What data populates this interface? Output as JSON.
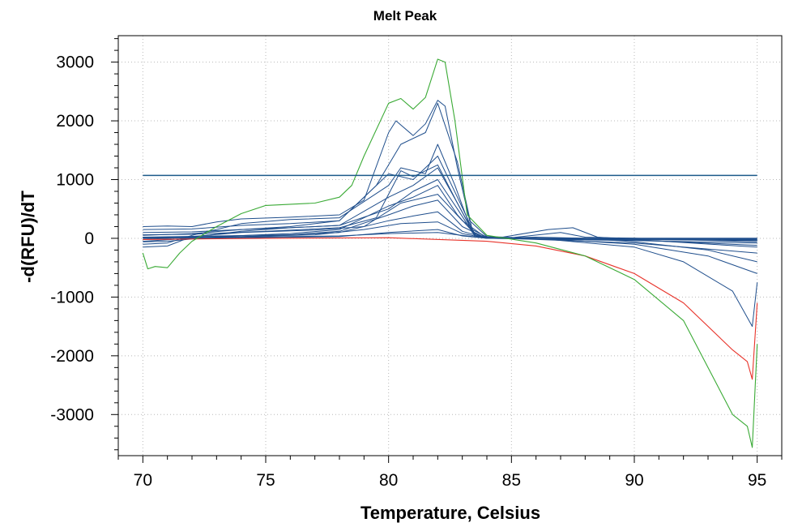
{
  "chart_data": {
    "type": "line",
    "title": "Melt Peak",
    "xlabel": "Temperature, Celsius",
    "ylabel": "-d(RFU)/dT",
    "xlim": [
      69,
      96
    ],
    "ylim": [
      -3700,
      3450
    ],
    "x_ticks": [
      70,
      75,
      80,
      85,
      90,
      95
    ],
    "y_ticks": [
      -3000,
      -2000,
      -1000,
      0,
      1000,
      2000,
      3000
    ],
    "x_minor_step": 1,
    "y_minor_step": 200,
    "grid": true,
    "threshold": 1070,
    "colors": {
      "main_series": "#1f4e8c",
      "threshold": "#1c5a8a",
      "outlier_green": "#3aaa35",
      "outlier_red": "#e8332a"
    },
    "series": [
      {
        "color": "green",
        "points": [
          [
            70,
            -250
          ],
          [
            70.2,
            -520
          ],
          [
            70.5,
            -480
          ],
          [
            71,
            -500
          ],
          [
            71.5,
            -250
          ],
          [
            72,
            -50
          ],
          [
            73,
            200
          ],
          [
            74,
            420
          ],
          [
            75,
            560
          ],
          [
            77,
            600
          ],
          [
            78,
            700
          ],
          [
            78.5,
            900
          ],
          [
            79,
            1400
          ],
          [
            80,
            2300
          ],
          [
            80.5,
            2380
          ],
          [
            81,
            2200
          ],
          [
            81.5,
            2400
          ],
          [
            82,
            3050
          ],
          [
            82.3,
            3000
          ],
          [
            82.7,
            2000
          ],
          [
            83.2,
            400
          ],
          [
            84,
            50
          ],
          [
            86,
            -80
          ],
          [
            88,
            -300
          ],
          [
            90,
            -700
          ],
          [
            92,
            -1400
          ],
          [
            94,
            -3000
          ],
          [
            94.6,
            -3200
          ],
          [
            94.8,
            -3560
          ],
          [
            95,
            -1800
          ]
        ]
      },
      {
        "color": "red",
        "points": [
          [
            70,
            -20
          ],
          [
            75,
            0
          ],
          [
            80,
            10
          ],
          [
            84,
            -50
          ],
          [
            86,
            -130
          ],
          [
            88,
            -300
          ],
          [
            90,
            -600
          ],
          [
            92,
            -1100
          ],
          [
            94,
            -1900
          ],
          [
            94.6,
            -2100
          ],
          [
            94.8,
            -2400
          ],
          [
            95,
            -1100
          ]
        ]
      },
      {
        "color": "blue",
        "points": [
          [
            70,
            200
          ],
          [
            71,
            210
          ],
          [
            72,
            200
          ],
          [
            73,
            280
          ],
          [
            74,
            330
          ],
          [
            76,
            360
          ],
          [
            78,
            400
          ],
          [
            79,
            650
          ],
          [
            80,
            1800
          ],
          [
            80.3,
            2000
          ],
          [
            81,
            1750
          ],
          [
            81.5,
            1950
          ],
          [
            82,
            2350
          ],
          [
            82.3,
            2250
          ],
          [
            82.8,
            1200
          ],
          [
            83.3,
            300
          ],
          [
            84,
            30
          ],
          [
            86,
            0
          ],
          [
            90,
            -150
          ],
          [
            92,
            -400
          ],
          [
            94,
            -900
          ],
          [
            94.8,
            -1500
          ],
          [
            95,
            -750
          ]
        ]
      },
      {
        "color": "blue",
        "points": [
          [
            70,
            50
          ],
          [
            72,
            80
          ],
          [
            74,
            150
          ],
          [
            76,
            200
          ],
          [
            78,
            300
          ],
          [
            79.5,
            900
          ],
          [
            80.5,
            1600
          ],
          [
            81.5,
            1800
          ],
          [
            82,
            2300
          ],
          [
            82.8,
            1300
          ],
          [
            83.4,
            150
          ],
          [
            84,
            20
          ],
          [
            86,
            0
          ],
          [
            90,
            -100
          ],
          [
            93,
            -300
          ],
          [
            95,
            -600
          ]
        ]
      },
      {
        "color": "blue",
        "points": [
          [
            70,
            -100
          ],
          [
            71,
            -80
          ],
          [
            72,
            50
          ],
          [
            74,
            250
          ],
          [
            76,
            320
          ],
          [
            78,
            350
          ],
          [
            80,
            900
          ],
          [
            80.5,
            1200
          ],
          [
            81.5,
            1100
          ],
          [
            82,
            1600
          ],
          [
            82.7,
            900
          ],
          [
            83.4,
            100
          ],
          [
            84,
            0
          ],
          [
            86,
            20
          ],
          [
            88,
            0
          ],
          [
            90,
            -60
          ],
          [
            93,
            -200
          ],
          [
            95,
            -400
          ]
        ]
      },
      {
        "color": "blue",
        "points": [
          [
            70,
            -20
          ],
          [
            72,
            20
          ],
          [
            74,
            120
          ],
          [
            76,
            180
          ],
          [
            78,
            220
          ],
          [
            80,
            700
          ],
          [
            81,
            900
          ],
          [
            82,
            1200
          ],
          [
            82.8,
            600
          ],
          [
            83.5,
            50
          ],
          [
            84.5,
            10
          ],
          [
            86.5,
            150
          ],
          [
            87.5,
            180
          ],
          [
            88.5,
            20
          ],
          [
            90,
            -20
          ],
          [
            95,
            -150
          ]
        ]
      },
      {
        "color": "blue",
        "points": [
          [
            70,
            0
          ],
          [
            73,
            30
          ],
          [
            76,
            80
          ],
          [
            78,
            150
          ],
          [
            80,
            550
          ],
          [
            81,
            700
          ],
          [
            82,
            900
          ],
          [
            82.8,
            400
          ],
          [
            83.6,
            30
          ],
          [
            85,
            10
          ],
          [
            87,
            100
          ],
          [
            88,
            20
          ],
          [
            90,
            0
          ],
          [
            95,
            -60
          ]
        ]
      },
      {
        "color": "blue",
        "points": [
          [
            70,
            20
          ],
          [
            73,
            40
          ],
          [
            76,
            60
          ],
          [
            78,
            120
          ],
          [
            80,
            400
          ],
          [
            81,
            550
          ],
          [
            82,
            650
          ],
          [
            83,
            200
          ],
          [
            84,
            0
          ],
          [
            90,
            0
          ],
          [
            95,
            -30
          ]
        ]
      },
      {
        "color": "blue",
        "points": [
          [
            70,
            -50
          ],
          [
            72,
            0
          ],
          [
            75,
            40
          ],
          [
            78,
            100
          ],
          [
            80,
            300
          ],
          [
            81,
            380
          ],
          [
            82,
            450
          ],
          [
            83,
            120
          ],
          [
            84,
            0
          ],
          [
            90,
            -10
          ],
          [
            95,
            -20
          ]
        ]
      },
      {
        "color": "blue",
        "points": [
          [
            70,
            10
          ],
          [
            74,
            30
          ],
          [
            77,
            60
          ],
          [
            79,
            150
          ],
          [
            80.5,
            250
          ],
          [
            82,
            280
          ],
          [
            83,
            80
          ],
          [
            84,
            0
          ],
          [
            95,
            0
          ]
        ]
      },
      {
        "color": "blue",
        "points": [
          [
            70,
            100
          ],
          [
            72,
            110
          ],
          [
            74,
            150
          ],
          [
            76,
            180
          ],
          [
            78,
            220
          ],
          [
            80,
            500
          ],
          [
            81,
            800
          ],
          [
            82,
            1000
          ],
          [
            82.8,
            500
          ],
          [
            83.5,
            50
          ],
          [
            84,
            0
          ],
          [
            90,
            -40
          ],
          [
            95,
            -80
          ]
        ]
      },
      {
        "color": "blue",
        "points": [
          [
            70,
            150
          ],
          [
            72,
            160
          ],
          [
            74,
            220
          ],
          [
            76,
            250
          ],
          [
            78,
            300
          ],
          [
            80,
            1100
          ],
          [
            81,
            1000
          ],
          [
            82,
            1400
          ],
          [
            82.8,
            700
          ],
          [
            83.5,
            80
          ],
          [
            84,
            10
          ],
          [
            90,
            -80
          ],
          [
            95,
            -250
          ]
        ]
      },
      {
        "color": "blue",
        "points": [
          [
            70,
            -150
          ],
          [
            71,
            -130
          ],
          [
            72,
            30
          ],
          [
            74,
            100
          ],
          [
            77,
            140
          ],
          [
            79,
            200
          ],
          [
            80.5,
            600
          ],
          [
            82,
            750
          ],
          [
            83,
            300
          ],
          [
            84,
            0
          ],
          [
            95,
            -40
          ]
        ]
      },
      {
        "color": "blue",
        "points": [
          [
            70,
            0
          ],
          [
            74,
            10
          ],
          [
            78,
            30
          ],
          [
            80,
            100
          ],
          [
            82,
            150
          ],
          [
            83,
            40
          ],
          [
            84,
            0
          ],
          [
            95,
            0
          ]
        ]
      },
      {
        "color": "blue",
        "points": [
          [
            70,
            -60
          ],
          [
            71,
            -50
          ],
          [
            72,
            -10
          ],
          [
            74,
            20
          ],
          [
            78,
            40
          ],
          [
            80,
            80
          ],
          [
            82,
            100
          ],
          [
            84,
            0
          ],
          [
            95,
            -10
          ]
        ]
      },
      {
        "color": "blue",
        "points": [
          [
            70,
            60
          ],
          [
            72,
            70
          ],
          [
            75,
            120
          ],
          [
            78,
            180
          ],
          [
            79.5,
            350
          ],
          [
            80.5,
            1150
          ],
          [
            81,
            1050
          ],
          [
            82,
            1250
          ],
          [
            82.8,
            600
          ],
          [
            83.5,
            60
          ],
          [
            84,
            0
          ],
          [
            90,
            -30
          ],
          [
            95,
            -120
          ]
        ]
      }
    ]
  }
}
